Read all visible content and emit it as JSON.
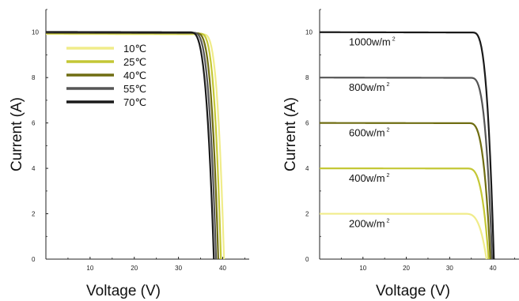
{
  "chart_data": [
    {
      "type": "line",
      "xlabel": "Voltage (V)",
      "ylabel": "Current (A)",
      "xlim": [
        0,
        46
      ],
      "ylim": [
        0,
        11
      ],
      "xticks": [
        10,
        20,
        30,
        40
      ],
      "yticks": [
        0,
        2,
        4,
        6,
        8,
        10
      ],
      "legend_position": "top-left",
      "series": [
        {
          "name": "10℃",
          "color": "#f0ec8a",
          "isc": 9.92,
          "voc": 40.3,
          "knee": 35.5
        },
        {
          "name": "25℃",
          "color": "#c4c735",
          "isc": 9.95,
          "voc": 39.6,
          "knee": 34.8
        },
        {
          "name": "40℃",
          "color": "#6f6d12",
          "isc": 9.97,
          "voc": 39.0,
          "knee": 34.0
        },
        {
          "name": "55℃",
          "color": "#555555",
          "isc": 9.99,
          "voc": 38.5,
          "knee": 33.3
        },
        {
          "name": "70℃",
          "color": "#1a1a1a",
          "isc": 10.01,
          "voc": 38.0,
          "knee": 32.6
        }
      ]
    },
    {
      "type": "line",
      "xlabel": "Voltage (V)",
      "ylabel": "Current (A)",
      "xlim": [
        0,
        46
      ],
      "ylim": [
        0,
        11
      ],
      "xticks": [
        10,
        20,
        30,
        40
      ],
      "yticks": [
        0,
        2,
        4,
        6,
        8,
        10
      ],
      "series": [
        {
          "name": "1000w/m",
          "color": "#1a1a1a",
          "isc": 10.0,
          "voc": 40.2,
          "knee": 35.2
        },
        {
          "name": "800w/m",
          "color": "#555555",
          "isc": 8.0,
          "voc": 39.8,
          "knee": 34.8
        },
        {
          "name": "600w/m",
          "color": "#6f6d12",
          "isc": 6.0,
          "voc": 39.4,
          "knee": 34.4
        },
        {
          "name": "400w/m",
          "color": "#c4c735",
          "isc": 4.0,
          "voc": 39.0,
          "knee": 34.0
        },
        {
          "name": "200w/m",
          "color": "#f0ec8a",
          "isc": 2.0,
          "voc": 38.5,
          "knee": 33.5
        }
      ],
      "annotations": [
        "1000w/m",
        "800w/m",
        "600w/m",
        "400w/m",
        "200w/m"
      ],
      "superscript": "2"
    }
  ]
}
